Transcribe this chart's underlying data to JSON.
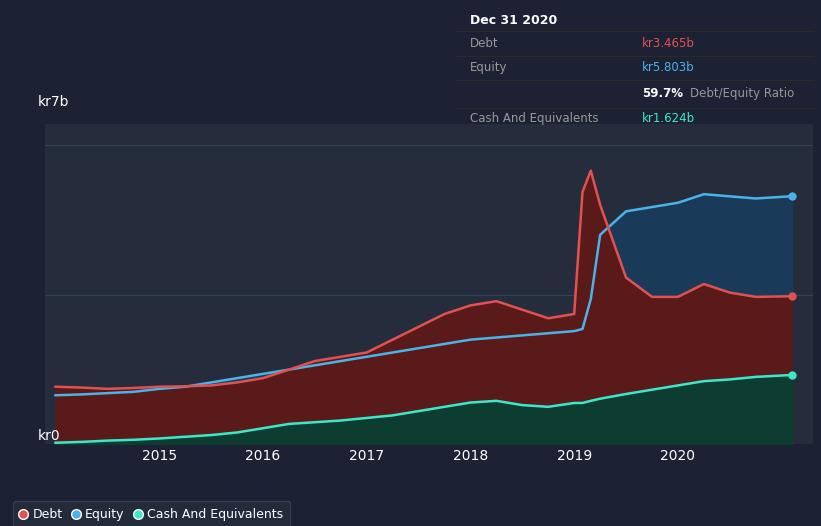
{
  "bg_color": "#1c2133",
  "plot_bg_color": "#252d3d",
  "grid_color": "#3a4260",
  "debt_color": "#e05252",
  "equity_color": "#4ab3e8",
  "cash_color": "#3de8c8",
  "debt_fill_color": "#5a1a1a",
  "equity_fill_color": "#1a3a5a",
  "cash_fill_color": "#0d3d30",
  "ylabel_text": "kr7b",
  "y0_text": "kr0",
  "xlim_start": 2013.9,
  "xlim_end": 2021.3,
  "ylim": [
    0,
    7.5
  ],
  "xtick_years": [
    2015,
    2016,
    2017,
    2018,
    2019,
    2020
  ],
  "x_years": [
    2014.0,
    2014.25,
    2014.5,
    2014.75,
    2015.0,
    2015.25,
    2015.5,
    2015.75,
    2016.0,
    2016.25,
    2016.5,
    2016.75,
    2017.0,
    2017.25,
    2017.5,
    2017.75,
    2018.0,
    2018.25,
    2018.5,
    2018.75,
    2019.0,
    2019.08,
    2019.16,
    2019.25,
    2019.5,
    2019.75,
    2020.0,
    2020.25,
    2020.5,
    2020.75,
    2021.1
  ],
  "debt_y": [
    1.35,
    1.33,
    1.3,
    1.32,
    1.35,
    1.36,
    1.38,
    1.45,
    1.55,
    1.75,
    1.95,
    2.05,
    2.15,
    2.45,
    2.75,
    3.05,
    3.25,
    3.35,
    3.15,
    2.95,
    3.05,
    5.9,
    6.4,
    5.6,
    3.9,
    3.45,
    3.45,
    3.75,
    3.55,
    3.45,
    3.465
  ],
  "equity_y": [
    1.15,
    1.17,
    1.2,
    1.23,
    1.3,
    1.35,
    1.45,
    1.55,
    1.65,
    1.75,
    1.85,
    1.95,
    2.05,
    2.15,
    2.25,
    2.35,
    2.45,
    2.5,
    2.55,
    2.6,
    2.65,
    2.7,
    3.4,
    4.9,
    5.45,
    5.55,
    5.65,
    5.85,
    5.8,
    5.75,
    5.803
  ],
  "cash_y": [
    0.04,
    0.06,
    0.09,
    0.11,
    0.14,
    0.18,
    0.22,
    0.28,
    0.38,
    0.48,
    0.52,
    0.56,
    0.62,
    0.68,
    0.78,
    0.88,
    0.98,
    1.02,
    0.92,
    0.88,
    0.97,
    0.97,
    1.02,
    1.07,
    1.18,
    1.28,
    1.38,
    1.48,
    1.52,
    1.58,
    1.624
  ],
  "tooltip_title": "Dec 31 2020",
  "tooltip_debt_label": "Debt",
  "tooltip_debt_value": "kr3.465b",
  "tooltip_equity_label": "Equity",
  "tooltip_equity_value": "kr5.803b",
  "tooltip_ratio": "59.7%",
  "tooltip_ratio_label": "Debt/Equity Ratio",
  "tooltip_cash_label": "Cash And Equivalents",
  "tooltip_cash_value": "kr1.624b",
  "legend_labels": [
    "Debt",
    "Equity",
    "Cash And Equivalents"
  ]
}
